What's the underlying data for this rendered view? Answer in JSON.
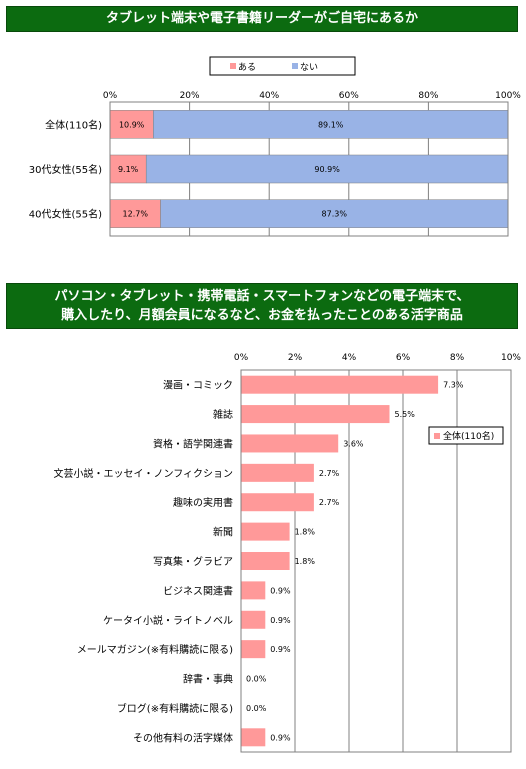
{
  "banner1": {
    "title": "タブレット端末や電子書籍リーダーがご自宅にあるか"
  },
  "banner2": {
    "title_line1": "パソコン・タブレット・携帯電話・スマートフォンなどの電子端末で、",
    "title_line2": "購入したり、月額会員になるなど、お金を払ったことのある活字商品"
  },
  "colors": {
    "aru": "#ff9999",
    "nai": "#99b3e6",
    "banner": "#0c6b10",
    "grid": "#808080"
  },
  "chart_data": [
    {
      "type": "bar",
      "orientation": "horizontal",
      "stacked": true,
      "percent": true,
      "categories": [
        "全体(110名)",
        "30代女性(55名)",
        "40代女性(55名)"
      ],
      "series": [
        {
          "name": "ある",
          "values": [
            10.9,
            9.1,
            12.7
          ],
          "labels": [
            "10.9%",
            "9.1%",
            "12.7%"
          ]
        },
        {
          "name": "ない",
          "values": [
            89.1,
            90.9,
            87.3
          ],
          "labels": [
            "89.1%",
            "90.9%",
            "87.3%"
          ]
        }
      ],
      "xlim": [
        0,
        100
      ],
      "ticks": [
        "0%",
        "20%",
        "40%",
        "60%",
        "80%",
        "100%"
      ],
      "legend_position": "top"
    },
    {
      "type": "bar",
      "orientation": "horizontal",
      "categories": [
        "漫画・コミック",
        "雑誌",
        "資格・語学関連書",
        "文芸小説・エッセイ・ノンフィクション",
        "趣味の実用書",
        "新聞",
        "写真集・グラビア",
        "ビジネス関連書",
        "ケータイ小説・ライトノベル",
        "メールマガジン(※有料購読に限る)",
        "辞書・事典",
        "ブログ(※有料購読に限る)",
        "その他有料の活字媒体"
      ],
      "series": [
        {
          "name": "全体(110名)",
          "values": [
            7.3,
            5.5,
            3.6,
            2.7,
            2.7,
            1.8,
            1.8,
            0.9,
            0.9,
            0.9,
            0.0,
            0.0,
            0.9
          ],
          "labels": [
            "7.3%",
            "5.5%",
            "3.6%",
            "2.7%",
            "2.7%",
            "1.8%",
            "1.8%",
            "0.9%",
            "0.9%",
            "0.9%",
            "0.0%",
            "0.0%",
            "0.9%"
          ]
        }
      ],
      "xlim": [
        0,
        10
      ],
      "ticks": [
        "0%",
        "2%",
        "4%",
        "6%",
        "8%",
        "10%"
      ],
      "legend_position": "right"
    }
  ]
}
